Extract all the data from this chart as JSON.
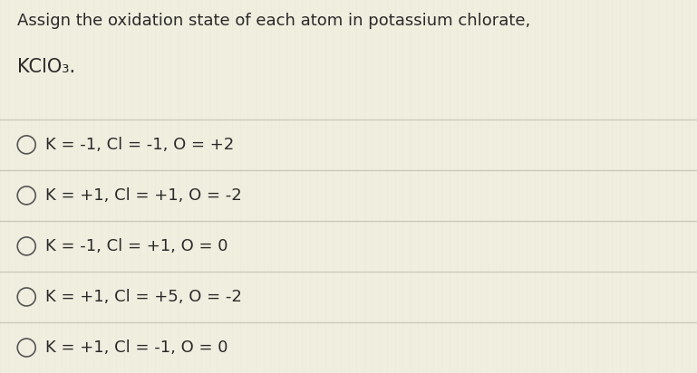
{
  "title_line1": "Assign the oxidation state of each atom in potassium chlorate,",
  "title_line2": "KClO₃.",
  "options": [
    "K = -1, Cl = -1, O = +2",
    "K = +1, Cl = +1, O = -2",
    "K = -1, Cl = +1, O = 0",
    "K = +1, Cl = +5, O = -2",
    "K = +1, Cl = -1, O = 0"
  ],
  "bg_color": "#f0eedf",
  "line_color": "#c8c8b8",
  "text_color": "#2a2a2a",
  "circle_edge_color": "#555555",
  "title_fontsize": 13.0,
  "title2_fontsize": 15.0,
  "option_fontsize": 13.0,
  "figsize": [
    7.69,
    4.12
  ],
  "dpi": 100
}
